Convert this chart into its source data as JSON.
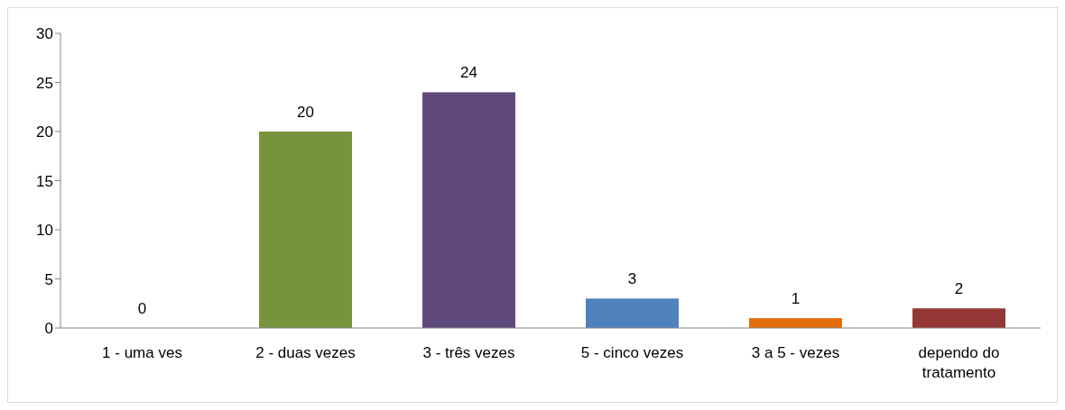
{
  "chart_data": {
    "type": "bar",
    "categories": [
      "1 - uma ves",
      "2 - duas vezes",
      "3 - três vezes",
      "5 - cinco vezes",
      "3 a 5 - vezes",
      "dependo do tratamento"
    ],
    "values": [
      0,
      20,
      24,
      3,
      1,
      2
    ],
    "colors": [
      "#4f81bd",
      "#77933c",
      "#604a7b",
      "#4f81bd",
      "#e46c0a",
      "#953735"
    ],
    "ylim": [
      0,
      30
    ],
    "yticks": [
      0,
      5,
      10,
      15,
      20,
      25,
      30
    ],
    "grid": false,
    "data_labels": true
  }
}
